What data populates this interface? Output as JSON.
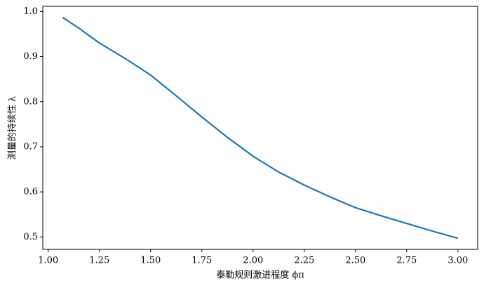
{
  "chart_data": {
    "type": "line",
    "x_label": "泰勒规则激进程度 ϕπ",
    "y_label": "测量的持续性 λ",
    "x": [
      1.07,
      1.15,
      1.25,
      1.375,
      1.5,
      1.625,
      1.75,
      1.875,
      2.0,
      2.125,
      2.25,
      2.375,
      2.5,
      2.625,
      2.75,
      2.875,
      3.0
    ],
    "series": [
      {
        "color": "#1f77b4",
        "values": [
          0.987,
          0.963,
          0.93,
          0.896,
          0.859,
          0.813,
          0.766,
          0.721,
          0.679,
          0.644,
          0.615,
          0.589,
          0.565,
          0.547,
          0.53,
          0.513,
          0.497
        ]
      }
    ],
    "xlim": [
      0.9735,
      3.0965
    ],
    "ylim": [
      0.4725,
      1.0115
    ],
    "xticks": [
      {
        "value": 1,
        "label": "1.00"
      },
      1.25,
      {
        "value": 1.5,
        "label": "1.50"
      },
      1.75,
      {
        "value": 2,
        "label": "2.00"
      },
      2.25,
      {
        "value": 2.5,
        "label": "2.50"
      },
      2.75,
      {
        "value": 3,
        "label": "3.00"
      }
    ],
    "yticks": [
      0.5,
      0.6,
      0.7,
      0.8,
      0.9,
      {
        "value": 1,
        "label": "1.0"
      }
    ],
    "grid": false
  }
}
